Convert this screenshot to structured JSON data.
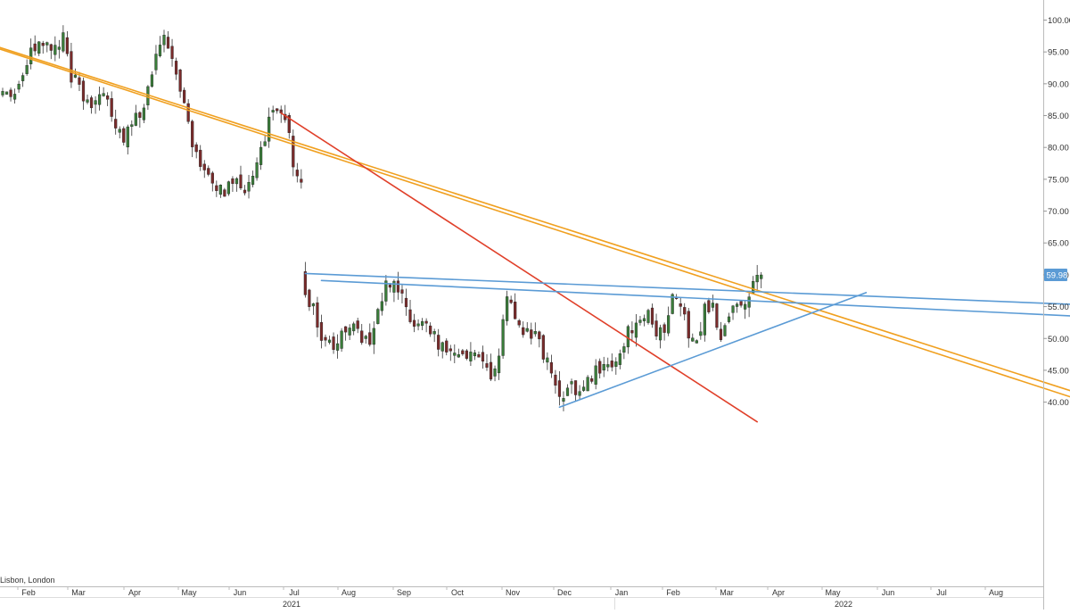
{
  "timezone_label": "Lisbon, London",
  "chart_data": {
    "type": "candlestick",
    "y_axis": {
      "ticks": [
        "100.00",
        "95.00",
        "90.00",
        "85.00",
        "80.00",
        "75.00",
        "70.00",
        "65.00",
        "60.00",
        "55.00",
        "50.00",
        "45.00",
        "40.00"
      ],
      "range": [
        36.9,
        101.5
      ],
      "side": "right"
    },
    "x_axis": {
      "month_labels": [
        "Feb",
        "Mar",
        "Apr",
        "May",
        "Jun",
        "Jul",
        "Aug",
        "Sep",
        "Oct",
        "Nov",
        "Dec",
        "Jan",
        "Feb",
        "Mar",
        "Apr",
        "May",
        "Jun",
        "Jul",
        "Aug"
      ],
      "year_labels": [
        "2021",
        "2022"
      ]
    },
    "last_price": {
      "label": "59.98",
      "value": 59.98,
      "color": "#5b9bd5"
    },
    "colors": {
      "up": "#3a7d3a",
      "down": "#7a2b2b",
      "wick": "#333333",
      "orange_trend": "#f0a020",
      "red_trend": "#e0402a",
      "blue_trend": "#5b9bd5"
    },
    "anchors": [
      {
        "t": 0,
        "p": 89
      },
      {
        "t": 3,
        "p": 88
      },
      {
        "t": 5,
        "p": 92
      },
      {
        "t": 8,
        "p": 96
      },
      {
        "t": 10,
        "p": 97
      },
      {
        "t": 12,
        "p": 95
      },
      {
        "t": 15,
        "p": 97
      },
      {
        "t": 17,
        "p": 91
      },
      {
        "t": 20,
        "p": 88
      },
      {
        "t": 22,
        "p": 87
      },
      {
        "t": 25,
        "p": 89
      },
      {
        "t": 27,
        "p": 85
      },
      {
        "t": 30,
        "p": 81
      },
      {
        "t": 33,
        "p": 85
      },
      {
        "t": 35,
        "p": 86
      },
      {
        "t": 38,
        "p": 94
      },
      {
        "t": 40,
        "p": 97
      },
      {
        "t": 42,
        "p": 93
      },
      {
        "t": 45,
        "p": 88
      },
      {
        "t": 47,
        "p": 80
      },
      {
        "t": 50,
        "p": 76
      },
      {
        "t": 52,
        "p": 74
      },
      {
        "t": 55,
        "p": 73
      },
      {
        "t": 58,
        "p": 75
      },
      {
        "t": 60,
        "p": 73
      },
      {
        "t": 63,
        "p": 78
      },
      {
        "t": 66,
        "p": 84
      },
      {
        "t": 67,
        "p": 86
      },
      {
        "t": 69,
        "p": 85
      },
      {
        "t": 71,
        "p": 82
      },
      {
        "t": 72,
        "p": 77
      },
      {
        "t": 74,
        "p": 74
      },
      {
        "t": 75,
        "p": 56
      },
      {
        "t": 77,
        "p": 55.5
      },
      {
        "t": 79,
        "p": 50
      },
      {
        "t": 82,
        "p": 49
      },
      {
        "t": 84,
        "p": 51
      },
      {
        "t": 87,
        "p": 53
      },
      {
        "t": 89,
        "p": 49
      },
      {
        "t": 91,
        "p": 50
      },
      {
        "t": 93,
        "p": 54
      },
      {
        "t": 95,
        "p": 58
      },
      {
        "t": 97,
        "p": 59
      },
      {
        "t": 99,
        "p": 56
      },
      {
        "t": 101,
        "p": 52
      },
      {
        "t": 104,
        "p": 53
      },
      {
        "t": 107,
        "p": 50
      },
      {
        "t": 110,
        "p": 48
      },
      {
        "t": 113,
        "p": 46
      },
      {
        "t": 116,
        "p": 48
      },
      {
        "t": 118,
        "p": 46
      },
      {
        "t": 121,
        "p": 44
      },
      {
        "t": 123,
        "p": 47
      },
      {
        "t": 125,
        "p": 57
      },
      {
        "t": 127,
        "p": 53
      },
      {
        "t": 130,
        "p": 51
      },
      {
        "t": 133,
        "p": 49
      },
      {
        "t": 135,
        "p": 46
      },
      {
        "t": 137,
        "p": 43
      },
      {
        "t": 138,
        "p": 40
      },
      {
        "t": 141,
        "p": 43
      },
      {
        "t": 143,
        "p": 41
      },
      {
        "t": 146,
        "p": 44
      },
      {
        "t": 149,
        "p": 46
      },
      {
        "t": 151,
        "p": 45
      },
      {
        "t": 153,
        "p": 48
      },
      {
        "t": 155,
        "p": 51
      },
      {
        "t": 157,
        "p": 53
      },
      {
        "t": 160,
        "p": 54
      },
      {
        "t": 162,
        "p": 50
      },
      {
        "t": 164,
        "p": 52
      },
      {
        "t": 166,
        "p": 56
      },
      {
        "t": 168,
        "p": 56
      },
      {
        "t": 170,
        "p": 51
      },
      {
        "t": 172,
        "p": 49
      },
      {
        "t": 174,
        "p": 55
      },
      {
        "t": 176,
        "p": 55
      },
      {
        "t": 178,
        "p": 50
      },
      {
        "t": 180,
        "p": 54
      },
      {
        "t": 182,
        "p": 56
      },
      {
        "t": 184,
        "p": 56
      },
      {
        "t": 186,
        "p": 58
      },
      {
        "t": 188,
        "p": 60
      }
    ],
    "trendlines": [
      {
        "name": "orange-upper",
        "color": "orange_trend",
        "from": {
          "t": -15,
          "p": 98.6
        },
        "to": {
          "t": 273,
          "p": 40.1
        }
      },
      {
        "name": "orange-lower",
        "color": "orange_trend",
        "from": {
          "t": -15,
          "p": 98.4
        },
        "to": {
          "t": 273,
          "p": 39.1
        }
      },
      {
        "name": "red-downtrend",
        "color": "red_trend",
        "from": {
          "t": 69,
          "p": 85.4
        },
        "to": {
          "t": 187,
          "p": 36.9
        }
      },
      {
        "name": "blue-upper-resistance",
        "color": "blue_trend",
        "from": {
          "t": 75,
          "p": 60.2
        },
        "to": {
          "t": 271,
          "p": 55.2
        }
      },
      {
        "name": "blue-lower-resistance",
        "color": "blue_trend",
        "from": {
          "t": 79,
          "p": 59.1
        },
        "to": {
          "t": 273,
          "p": 53.3
        }
      },
      {
        "name": "blue-rising-support",
        "color": "blue_trend",
        "from": {
          "t": 138,
          "p": 39.2
        },
        "to": {
          "t": 214,
          "p": 57.2
        }
      }
    ]
  }
}
